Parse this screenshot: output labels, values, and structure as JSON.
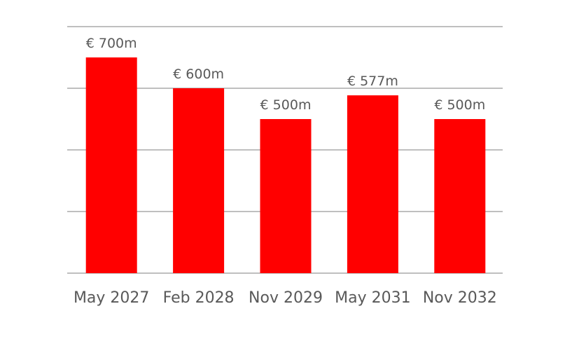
{
  "chart_data": {
    "type": "bar",
    "categories": [
      "May 2027",
      "Feb 2028",
      "Nov 2029",
      "May 2031",
      "Nov 2032"
    ],
    "values": [
      700,
      600,
      500,
      577,
      500
    ],
    "data_labels": [
      "€ 700m",
      "€ 600m",
      "€ 500m",
      "€ 577m",
      "€ 500m"
    ],
    "title": "",
    "xlabel": "",
    "ylabel": "",
    "ylim": [
      0,
      800
    ],
    "gridlines": [
      0,
      200,
      400,
      600,
      800
    ],
    "grid": true,
    "legend": "none",
    "colors": {
      "bar": "#ff0000",
      "grid": "#bfbfbf",
      "text": "#595959"
    }
  }
}
